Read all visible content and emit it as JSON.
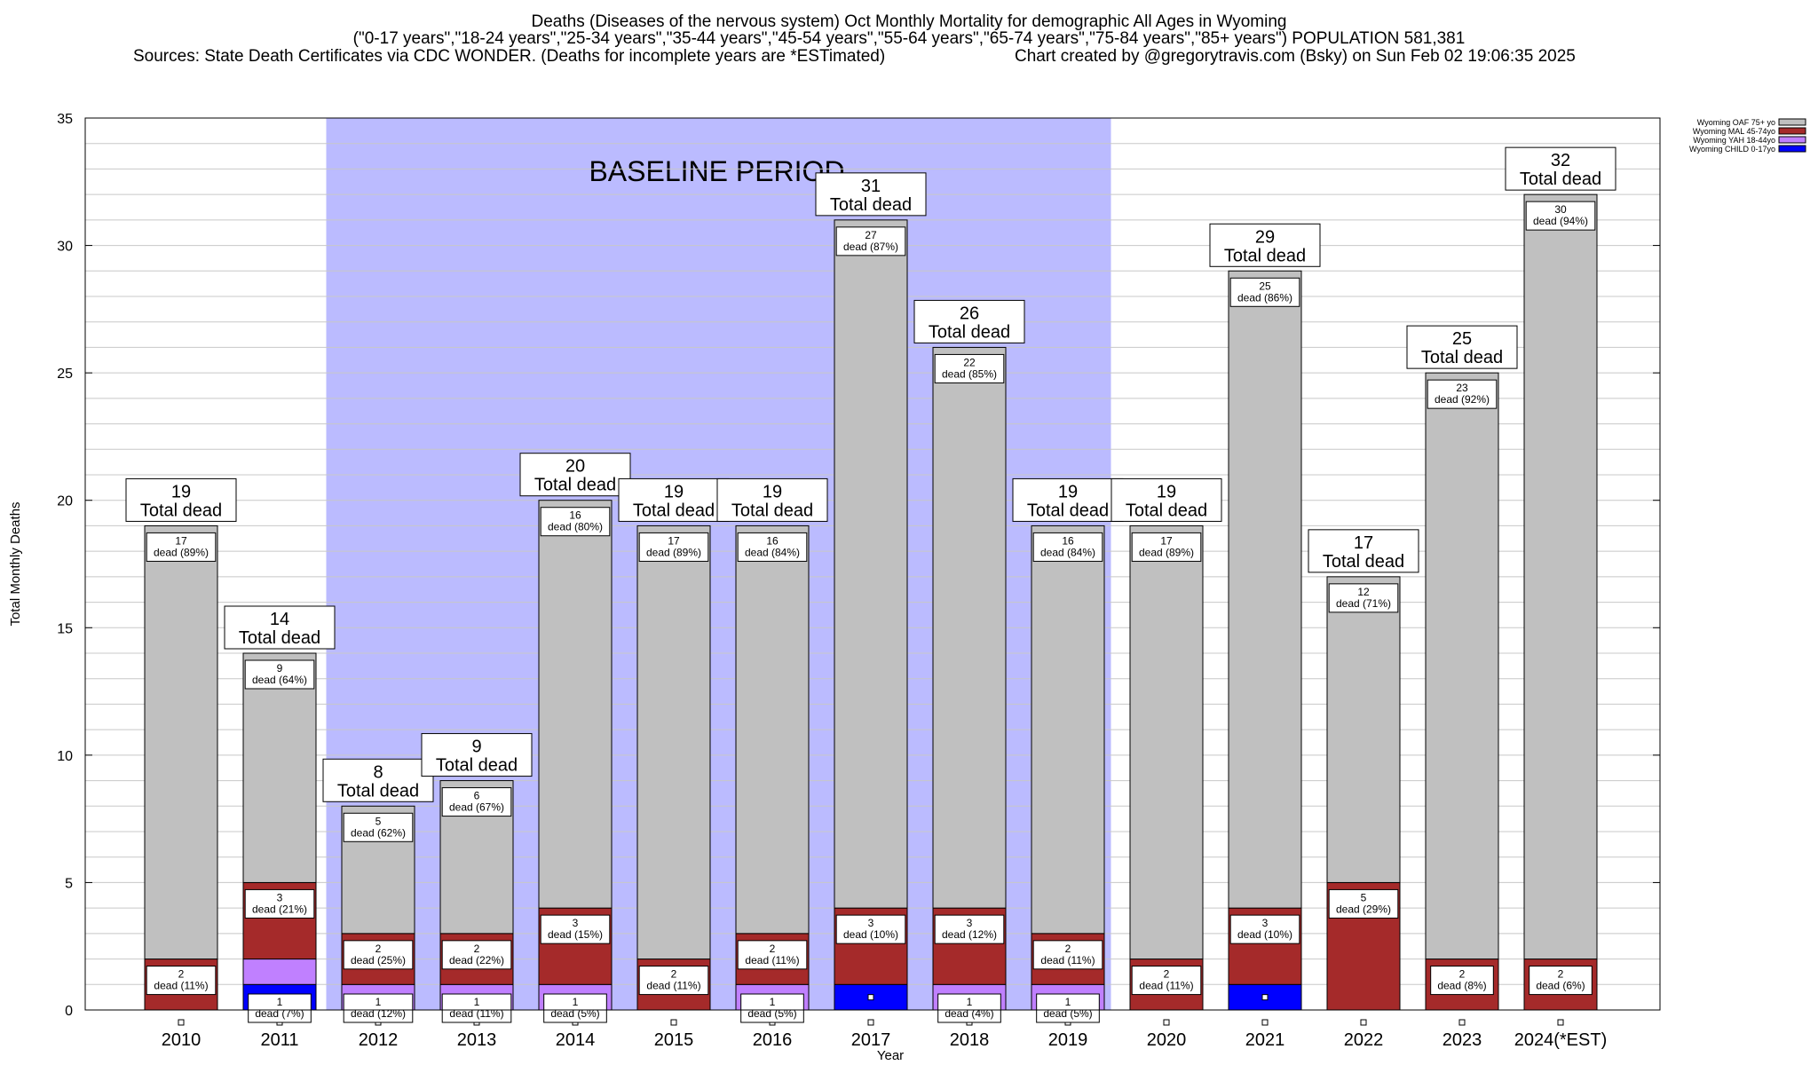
{
  "title": {
    "line1": "Deaths (Diseases of the nervous system) Oct Monthly Mortality for demographic All Ages in Wyoming",
    "line2": "(\"0-17 years\",\"18-24 years\",\"25-34 years\",\"35-44 years\",\"45-54 years\",\"55-64 years\",\"65-74 years\",\"75-84 years\",\"85+ years\") POPULATION 581,381",
    "line3_left": "Sources: State Death Certificates via CDC WONDER. (Deaths for incomplete years are *ESTimated)",
    "line3_right": "Chart created by @gregorytravis.com (Bsky) on Sun Feb 02 19:06:35 2025"
  },
  "colors": {
    "oaf": "#c0c0c0",
    "mal": "#a52a2a",
    "yah": "#c080ff",
    "child": "#0000ff",
    "baseline": "#bbbbff",
    "grid": "#c8c8c8"
  },
  "chart_data": {
    "type": "bar",
    "stacked": true,
    "xlabel": "Year",
    "ylabel": "Total Monthly Deaths",
    "ylim": [
      0,
      35
    ],
    "yticks": [
      0,
      5,
      10,
      15,
      20,
      25,
      30,
      35
    ],
    "grid": true,
    "legend_position": "top-right",
    "baseline_label": "BASELINE PERIOD",
    "baseline_range": [
      "2012",
      "2019"
    ],
    "total_label_suffix": "Total dead",
    "categories": [
      "2010",
      "2011",
      "2012",
      "2013",
      "2014",
      "2015",
      "2016",
      "2017",
      "2018",
      "2019",
      "2020",
      "2021",
      "2022",
      "2023",
      "2024(*EST)"
    ],
    "totals": [
      19,
      14,
      8,
      9,
      20,
      19,
      19,
      31,
      26,
      19,
      19,
      29,
      17,
      25,
      32
    ],
    "series": [
      {
        "name": "Wyoming CHILD 0-17yo",
        "key": "child",
        "values": [
          0,
          1,
          0,
          0,
          0,
          0,
          0,
          1,
          0,
          0,
          0,
          1,
          0,
          0,
          0
        ],
        "labels": [
          "",
          "1\ndead (7%)",
          "",
          "",
          "",
          "",
          "",
          "",
          "",
          "",
          "",
          "",
          "",
          "",
          ""
        ]
      },
      {
        "name": "Wyoming YAH 18-44yo",
        "key": "yah",
        "values": [
          0,
          1,
          1,
          1,
          1,
          0,
          1,
          0,
          1,
          1,
          0,
          0,
          0,
          0,
          0
        ],
        "labels": [
          "",
          "",
          "1\ndead (12%)",
          "1\ndead (11%)",
          "1\ndead (5%)",
          "",
          "1\ndead (5%)",
          "",
          "1\ndead (4%)",
          "1\ndead (5%)",
          "",
          "",
          "",
          "",
          ""
        ]
      },
      {
        "name": "Wyoming MAL 45-74yo",
        "key": "mal",
        "values": [
          2,
          3,
          2,
          2,
          3,
          2,
          2,
          3,
          3,
          2,
          2,
          3,
          5,
          2,
          2
        ],
        "labels": [
          "2\ndead (11%)",
          "3\ndead (21%)",
          "2\ndead (25%)",
          "2\ndead (22%)",
          "3\ndead (15%)",
          "2\ndead (11%)",
          "2\ndead (11%)",
          "3\ndead (10%)",
          "3\ndead (12%)",
          "2\ndead (11%)",
          "2\ndead (11%)",
          "3\ndead (10%)",
          "5\ndead (29%)",
          "2\ndead (8%)",
          "2\ndead (6%)"
        ]
      },
      {
        "name": "Wyoming OAF 75+ yo",
        "key": "oaf",
        "values": [
          17,
          9,
          5,
          6,
          16,
          17,
          16,
          27,
          22,
          16,
          17,
          25,
          12,
          23,
          30
        ],
        "labels": [
          "17\ndead (89%)",
          "9\ndead (64%)",
          "5\ndead (62%)",
          "6\ndead (67%)",
          "16\ndead (80%)",
          "17\ndead (89%)",
          "16\ndead (84%)",
          "27\ndead (87%)",
          "22\ndead (85%)",
          "16\ndead (84%)",
          "17\ndead (89%)",
          "25\ndead (86%)",
          "12\ndead (71%)",
          "23\ndead (92%)",
          "30\ndead (94%)"
        ]
      }
    ],
    "legend_order": [
      "oaf",
      "mal",
      "yah",
      "child"
    ]
  }
}
